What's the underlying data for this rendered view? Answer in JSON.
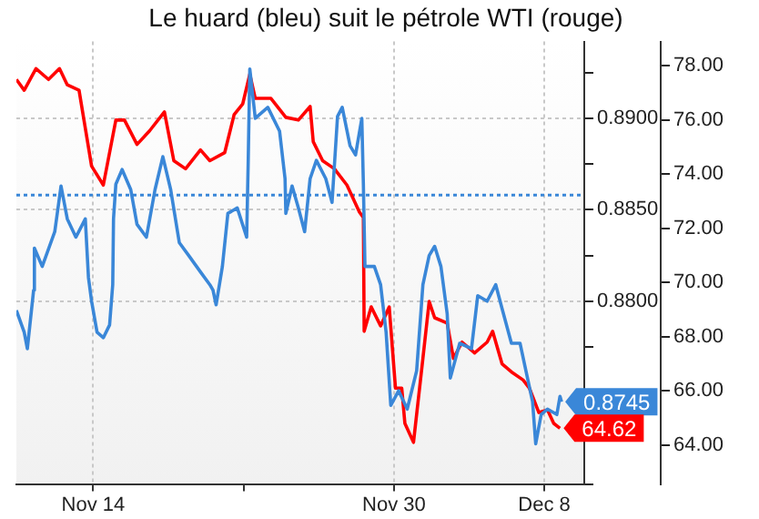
{
  "chart_data": {
    "type": "line",
    "title": "Le huard (bleu) suit le pétrole WTI (rouge)",
    "xlim": [
      "--11-09T22:00",
      "--12-10T03:00"
    ],
    "xticks": [
      {
        "value": "--11-14",
        "label": "Nov 14"
      },
      {
        "value": "--11-22",
        "label": null
      },
      {
        "value": "--11-30",
        "label": "Nov 30"
      },
      {
        "value": "--12-08",
        "label": "Dec 8"
      }
    ],
    "ylim": [
      0.87,
      0.8942
    ],
    "yticks": [
      {
        "value": 0.87,
        "label": null
      },
      {
        "value": 0.8725,
        "label": null
      },
      {
        "value": 0.875,
        "label": null
      },
      {
        "value": 0.8775,
        "label": null
      },
      {
        "value": 0.88,
        "label": "0.8800"
      },
      {
        "value": 0.8825,
        "label": null
      },
      {
        "value": 0.885,
        "label": "0.8850"
      },
      {
        "value": 0.8875,
        "label": null
      },
      {
        "value": 0.89,
        "label": "0.8900"
      },
      {
        "value": 0.8925,
        "label": null
      }
    ],
    "y2lim": [
      62.56,
      78.9
    ],
    "y2ticks": [
      {
        "value": 64,
        "label": "64.00"
      },
      {
        "value": 66,
        "label": "66.00"
      },
      {
        "value": 68,
        "label": "68.00"
      },
      {
        "value": 70,
        "label": "70.00"
      },
      {
        "value": 72,
        "label": "72.00"
      },
      {
        "value": 74,
        "label": "74.00"
      },
      {
        "value": 76,
        "label": "76.00"
      },
      {
        "value": 78,
        "label": "78.00"
      }
    ],
    "grid": true,
    "legend": false,
    "marker": "none",
    "line_style": "solid",
    "ref_lines": [
      {
        "axis": "y",
        "value": 0.8858,
        "color": "#3a87d8",
        "line_style": "dotted"
      }
    ],
    "series": [
      {
        "color": "#3a87d8",
        "axis": "y",
        "x": [
          "--11-09T22:00",
          "--11-10T08:00",
          "--11-10T12:00",
          "--11-10T20:00",
          "--11-10T21:00",
          "--11-11T07:00",
          "--11-11T23:00",
          "--11-12T07:00",
          "--11-12T15:00",
          "--11-13T02:00",
          "--11-13T14:00",
          "--11-13T18:00",
          "--11-13T22:00",
          "--11-14T05:00",
          "--11-14T13:00",
          "--11-14T21:00",
          "--11-15T01:00",
          "--11-15T02:00",
          "--11-15T05:00",
          "--11-15T13:00",
          "--11-16T00:00",
          "--11-16T08:00",
          "--11-16T20:00",
          "--11-17T07:00",
          "--11-17T17:00",
          "--11-18T03:00",
          "--11-18T14:00",
          "--11-19T02:00",
          "--11-19T17:00",
          "--11-20T05:00",
          "--11-20T09:00",
          "--11-20T13:00",
          "--11-20T21:00",
          "--11-21T04:00",
          "--11-21T16:00",
          "--11-22T04:00",
          "--11-22T06:00",
          "--11-22T08:00",
          "--11-22T15:00",
          "--11-23T07:00",
          "--11-23T22:00",
          "--11-24T05:00",
          "--11-24T06:00",
          "--11-24T14:00",
          "--11-24T22:00",
          "--11-25T06:00",
          "--11-25T13:00",
          "--11-25T21:00",
          "--11-26T09:00",
          "--11-26T17:00",
          "--11-27T00:00",
          "--11-27T06:00",
          "--11-27T16:00",
          "--11-27T23:00",
          "--11-28T07:00",
          "--11-28T09:00",
          "--11-28T11:00",
          "--11-28T23:00",
          "--11-29T07:00",
          "--11-29T14:00",
          "--11-29T20:00",
          "--11-30T06:00",
          "--11-30T17:00",
          "--12-01T05:00",
          "--12-01T13:00",
          "--12-01T21:00",
          "--12-02T04:00",
          "--12-02T12:00",
          "--12-02T20:00",
          "--12-03T00:00",
          "--12-03T12:00",
          "--12-04T03:00",
          "--12-04T11:00",
          "--12-04T23:00",
          "--12-05T10:00",
          "--12-05T18:00",
          "--12-06T06:00",
          "--12-06T17:00",
          "--12-07T01:00",
          "--12-07T09:00",
          "--12-07T13:00",
          "--12-07T20:00",
          "--12-08T04:00",
          "--12-08T16:00",
          "--12-08T20:00",
          "--12-08T22:00"
        ],
        "values": [
          0.8795,
          0.8783,
          0.8774,
          0.8806,
          0.8829,
          0.8819,
          0.8838,
          0.8863,
          0.8845,
          0.8835,
          0.8845,
          0.8813,
          0.88,
          0.8783,
          0.878,
          0.8787,
          0.8809,
          0.8845,
          0.8864,
          0.8872,
          0.8861,
          0.8842,
          0.8835,
          0.8861,
          0.8879,
          0.8861,
          0.8832,
          0.8825,
          0.8816,
          0.8809,
          0.8806,
          0.8798,
          0.8819,
          0.8848,
          0.8851,
          0.8835,
          0.8877,
          0.8927,
          0.89,
          0.8906,
          0.8893,
          0.8867,
          0.8848,
          0.8863,
          0.8851,
          0.8838,
          0.8867,
          0.8877,
          0.8867,
          0.8854,
          0.8901,
          0.8906,
          0.8885,
          0.888,
          0.89,
          0.8864,
          0.8819,
          0.8819,
          0.8809,
          0.8783,
          0.8743,
          0.8751,
          0.8741,
          0.8762,
          0.8809,
          0.8825,
          0.883,
          0.8819,
          0.8793,
          0.8758,
          0.8777,
          0.8774,
          0.8803,
          0.88,
          0.8809,
          0.8796,
          0.8777,
          0.8777,
          0.8761,
          0.8745,
          0.8722,
          0.8738,
          0.8741,
          0.8738,
          0.8748,
          0.8745
        ],
        "value_labels": [
          null,
          null,
          null,
          null,
          null,
          null,
          null,
          null,
          null,
          null,
          null,
          null,
          null,
          null,
          null,
          null,
          null,
          null,
          null,
          null,
          null,
          null,
          null,
          null,
          null,
          null,
          null,
          null,
          null,
          null,
          null,
          null,
          null,
          null,
          null,
          null,
          null,
          null,
          null,
          null,
          null,
          null,
          null,
          null,
          null,
          null,
          null,
          null,
          null,
          null,
          null,
          null,
          null,
          null,
          null,
          null,
          null,
          null,
          null,
          null,
          null,
          null,
          null,
          null,
          null,
          null,
          null,
          null,
          null,
          null,
          null,
          null,
          null,
          null,
          null,
          null,
          null,
          null,
          null,
          null,
          null,
          null,
          null,
          null,
          null,
          "0.8745"
        ]
      },
      {
        "color": "#ff0000",
        "axis": "y2",
        "x": [
          "--11-09T22:00",
          "--11-10T08:00",
          "--11-10T23:00",
          "--11-11T15:00",
          "--11-12T05:00",
          "--11-12T15:00",
          "--11-13T06:00",
          "--11-13T22:00",
          "--11-14T13:00",
          "--11-15T05:00",
          "--11-15T16:00",
          "--11-16T08:00",
          "--11-17T00:00",
          "--11-17T19:00",
          "--11-18T07:00",
          "--11-18T22:00",
          "--11-19T17:00",
          "--11-20T05:00",
          "--11-21T00:00",
          "--11-21T12:00",
          "--11-21T23:00",
          "--11-22T08:00",
          "--11-22T15:00",
          "--11-23T11:00",
          "--11-24T06:00",
          "--11-24T22:00",
          "--11-25T13:00",
          "--11-25T17:00",
          "--11-26T05:00",
          "--11-26T20:00",
          "--11-27T12:00",
          "--11-28T04:00",
          "--11-28T09:00",
          "--11-28T10:00",
          "--11-28T19:00",
          "--11-29T07:00",
          "--11-29T18:00",
          "--11-30T02:00",
          "--11-30T10:00",
          "--11-30T14:00",
          "--12-01T01:00",
          "--12-01T13:00",
          "--12-01T21:00",
          "--12-02T04:00",
          "--12-02T20:00",
          "--12-03T04:00",
          "--12-03T15:00",
          "--12-04T07:00",
          "--12-04T23:00",
          "--12-05T06:00",
          "--12-05T18:00",
          "--12-06T06:00",
          "--12-06T21:00",
          "--12-07T05:00",
          "--12-07T17:00",
          "--12-08T04:00",
          "--12-08T12:00",
          "--12-08T20:00"
        ],
        "values": [
          77.5,
          77.1,
          77.9,
          77.5,
          77.9,
          77.3,
          77.1,
          74.3,
          73.6,
          76.0,
          76.0,
          75.1,
          75.6,
          76.3,
          74.5,
          74.2,
          74.9,
          74.5,
          74.8,
          76.2,
          76.6,
          77.7,
          76.8,
          76.8,
          76.1,
          76.0,
          76.5,
          75.2,
          74.5,
          74.2,
          73.6,
          72.6,
          72.4,
          68.2,
          69.1,
          68.4,
          69.1,
          66.1,
          66.1,
          64.8,
          64.1,
          67.2,
          69.3,
          68.7,
          68.5,
          67.2,
          67.8,
          67.4,
          67.8,
          68.2,
          67.0,
          66.7,
          66.4,
          66.1,
          65.2,
          65.3,
          64.8,
          64.62
        ],
        "value_labels": [
          null,
          null,
          null,
          null,
          null,
          null,
          null,
          null,
          null,
          null,
          null,
          null,
          null,
          null,
          null,
          null,
          null,
          null,
          null,
          null,
          null,
          null,
          null,
          null,
          null,
          null,
          null,
          null,
          null,
          null,
          null,
          null,
          null,
          null,
          null,
          null,
          null,
          null,
          null,
          null,
          null,
          null,
          null,
          null,
          null,
          null,
          null,
          null,
          null,
          null,
          null,
          null,
          null,
          null,
          null,
          null,
          null,
          "64.62"
        ]
      }
    ]
  }
}
